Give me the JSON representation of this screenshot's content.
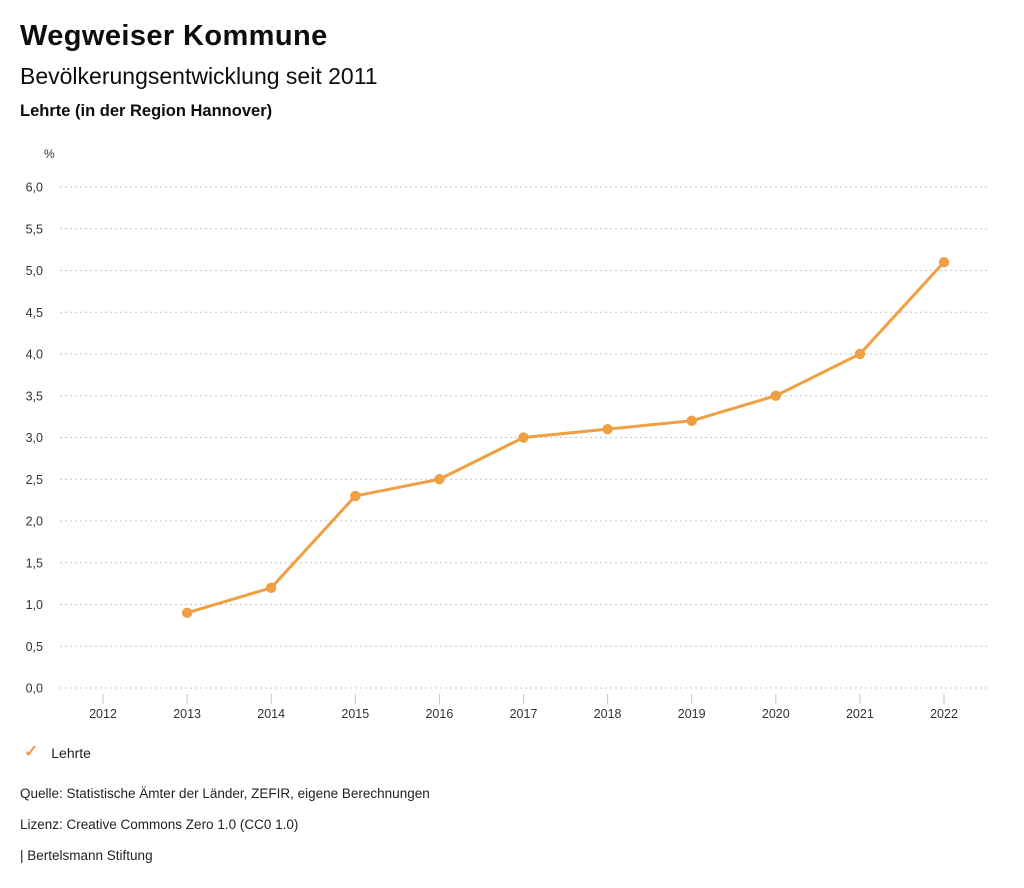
{
  "header": {
    "title": "Wegweiser Kommune",
    "subtitle": "Bevölkerungsentwicklung seit 2011",
    "location": "Lehrte (in der Region Hannover)"
  },
  "chart_data": {
    "type": "line",
    "title": "Bevölkerungsentwicklung seit 2011",
    "subtitle": "Lehrte (in der Region Hannover)",
    "ylabel": "%",
    "xlabel": "",
    "ylim": [
      0,
      6
    ],
    "y_tick_step": 0.5,
    "y_ticks": [
      "0,0",
      "0,5",
      "1,0",
      "1,5",
      "2,0",
      "2,5",
      "3,0",
      "3,5",
      "4,0",
      "4,5",
      "5,0",
      "5,5",
      "6,0"
    ],
    "x_ticks": [
      "2012",
      "2013",
      "2014",
      "2015",
      "2016",
      "2017",
      "2018",
      "2019",
      "2020",
      "2021",
      "2022"
    ],
    "grid": "dotted horizontal gridlines",
    "legend_position": "bottom-left",
    "series": [
      {
        "name": "Lehrte",
        "color": "#EF9F44",
        "x": [
          2013,
          2014,
          2015,
          2016,
          2017,
          2018,
          2019,
          2020,
          2021,
          2022
        ],
        "values": [
          0.9,
          1.2,
          2.3,
          2.5,
          3.0,
          3.1,
          3.2,
          3.5,
          4.0,
          5.1
        ]
      }
    ]
  },
  "legend": {
    "items": [
      {
        "icon": "check-icon",
        "label": "Lehrte",
        "color": "#EF9F44"
      }
    ]
  },
  "footer": {
    "source": "Quelle: Statistische Ämter der Länder, ZEFIR, eigene Berechnungen",
    "license": "Lizenz: Creative Commons Zero 1.0 (CC0 1.0)",
    "attribution": "| Bertelsmann Stiftung"
  },
  "colors": {
    "accent": "#EF9F44",
    "grid": "#C6C6C6",
    "axis_text": "#333333",
    "text": "#1A1A1A"
  }
}
